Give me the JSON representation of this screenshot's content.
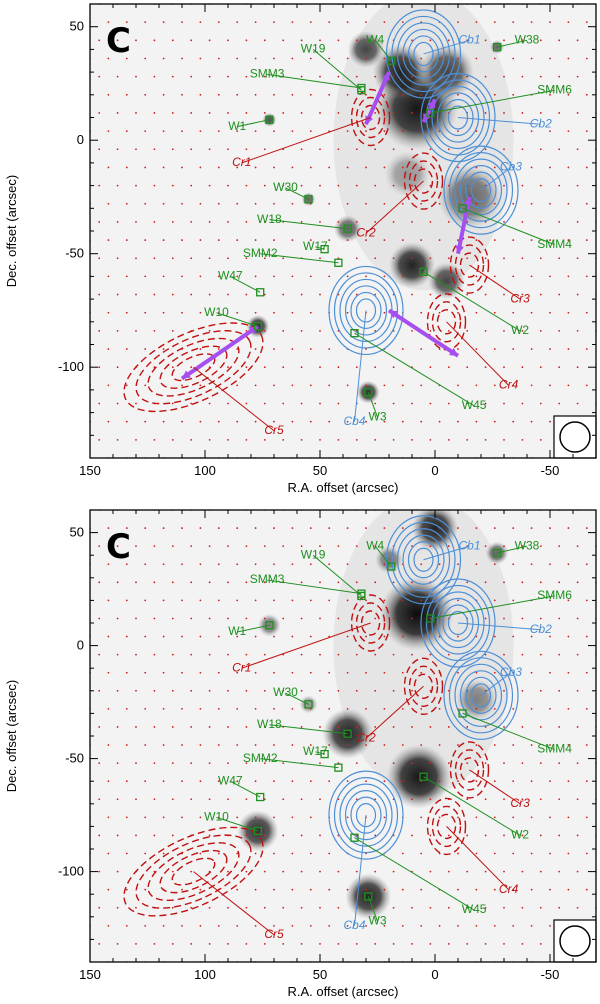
{
  "chart_data": [
    {
      "type": "scatter",
      "panel_label": "C",
      "xlabel": "R.A. offset (arcsec)",
      "ylabel": "Dec. offset (arcsec)",
      "xlim": [
        150,
        -70
      ],
      "ylim": [
        -140,
        60
      ],
      "x_reversed": true,
      "xticks": [
        150,
        100,
        50,
        0,
        -50
      ],
      "yticks": [
        50,
        0,
        -50,
        -100
      ],
      "background": "grayscale near-infrared image (high resolution)",
      "outflow_arrows": true,
      "colors": {
        "sources": "#1f8f1f",
        "blue_lobes": "#4d8fd6",
        "red_lobes": "#c01010",
        "arrows": "#a64ff0",
        "grid_dots": "#d02020"
      },
      "sources": [
        {
          "name": "W4",
          "x": 19,
          "y": 35,
          "lx": 26,
          "ly": 44
        },
        {
          "name": "W19",
          "x": 32,
          "y": 22,
          "lx": 53,
          "ly": 40
        },
        {
          "name": "W38",
          "x": -27,
          "y": 41,
          "lx": -40,
          "ly": 44
        },
        {
          "name": "SMM3",
          "x": 32,
          "y": 23,
          "lx": 73,
          "ly": 29
        },
        {
          "name": "SMM6",
          "x": 2,
          "y": 12,
          "lx": -52,
          "ly": 22
        },
        {
          "name": "W1",
          "x": 72,
          "y": 9,
          "lx": 86,
          "ly": 6
        },
        {
          "name": "W30",
          "x": 55,
          "y": -26,
          "lx": 65,
          "ly": -21
        },
        {
          "name": "W18",
          "x": 38,
          "y": -39,
          "lx": 72,
          "ly": -35
        },
        {
          "name": "SMM4",
          "x": -12,
          "y": -30,
          "lx": -52,
          "ly": -46
        },
        {
          "name": "SMM2",
          "x": 42,
          "y": -54,
          "lx": 76,
          "ly": -50
        },
        {
          "name": "W17",
          "x": 48,
          "y": -48,
          "lx": 52,
          "ly": -47
        },
        {
          "name": "W47",
          "x": 76,
          "y": -67,
          "lx": 89,
          "ly": -60
        },
        {
          "name": "W10",
          "x": 77,
          "y": -82,
          "lx": 95,
          "ly": -76
        },
        {
          "name": "W2",
          "x": 5,
          "y": -58,
          "lx": -37,
          "ly": -84
        },
        {
          "name": "W45",
          "x": 35,
          "y": -85,
          "lx": -17,
          "ly": -117
        },
        {
          "name": "W3",
          "x": 29,
          "y": -111,
          "lx": 25,
          "ly": -122
        }
      ],
      "blue_lobes": [
        {
          "name": "Cb1",
          "x": 5,
          "y": 38,
          "lx": -15,
          "ly": 44
        },
        {
          "name": "Cb2",
          "x": -10,
          "y": 10,
          "lx": -46,
          "ly": 7
        },
        {
          "name": "Cb3",
          "x": -20,
          "y": -22,
          "lx": -33,
          "ly": -12
        },
        {
          "name": "Cb4",
          "x": 30,
          "y": -75,
          "lx": 35,
          "ly": -124
        }
      ],
      "red_lobes": [
        {
          "name": "Cr1",
          "x": 28,
          "y": 10,
          "lx": 84,
          "ly": -10
        },
        {
          "name": "Cr2",
          "x": 5,
          "y": -18,
          "lx": 30,
          "ly": -41
        },
        {
          "name": "Cr3",
          "x": -15,
          "y": -55,
          "lx": -37,
          "ly": -70
        },
        {
          "name": "Cr4",
          "x": -5,
          "y": -80,
          "lx": -32,
          "ly": -108
        },
        {
          "name": "Cr5",
          "x": 105,
          "y": -100,
          "lx": 70,
          "ly": -128
        }
      ],
      "beam": "circle (bottom-right)"
    },
    {
      "type": "scatter",
      "panel_label": "C",
      "xlabel": "R.A. offset (arcsec)",
      "ylabel": "Dec. offset (arcsec)",
      "xlim": [
        150,
        -70
      ],
      "ylim": [
        -140,
        60
      ],
      "x_reversed": true,
      "xticks": [
        150,
        100,
        50,
        0,
        -50
      ],
      "yticks": [
        50,
        0,
        -50,
        -100
      ],
      "background": "grayscale mid-infrared image (lower resolution)",
      "outflow_arrows": false,
      "colors": {
        "sources": "#1f8f1f",
        "blue_lobes": "#4d8fd6",
        "red_lobes": "#c01010",
        "grid_dots": "#d02020"
      },
      "sources": [
        {
          "name": "W4",
          "x": 19,
          "y": 35,
          "lx": 26,
          "ly": 44
        },
        {
          "name": "W19",
          "x": 32,
          "y": 22,
          "lx": 53,
          "ly": 40
        },
        {
          "name": "W38",
          "x": -27,
          "y": 41,
          "lx": -40,
          "ly": 44
        },
        {
          "name": "SMM3",
          "x": 32,
          "y": 23,
          "lx": 73,
          "ly": 29
        },
        {
          "name": "SMM6",
          "x": 2,
          "y": 12,
          "lx": -52,
          "ly": 22
        },
        {
          "name": "W1",
          "x": 72,
          "y": 9,
          "lx": 86,
          "ly": 6
        },
        {
          "name": "W30",
          "x": 55,
          "y": -26,
          "lx": 65,
          "ly": -21
        },
        {
          "name": "W18",
          "x": 38,
          "y": -39,
          "lx": 72,
          "ly": -35
        },
        {
          "name": "SMM4",
          "x": -12,
          "y": -30,
          "lx": -52,
          "ly": -46
        },
        {
          "name": "SMM2",
          "x": 42,
          "y": -54,
          "lx": 76,
          "ly": -50
        },
        {
          "name": "W17",
          "x": 48,
          "y": -48,
          "lx": 52,
          "ly": -47
        },
        {
          "name": "W47",
          "x": 76,
          "y": -67,
          "lx": 89,
          "ly": -60
        },
        {
          "name": "W10",
          "x": 77,
          "y": -82,
          "lx": 95,
          "ly": -76
        },
        {
          "name": "W2",
          "x": 5,
          "y": -58,
          "lx": -37,
          "ly": -84
        },
        {
          "name": "W45",
          "x": 35,
          "y": -85,
          "lx": -17,
          "ly": -117
        },
        {
          "name": "W3",
          "x": 29,
          "y": -111,
          "lx": 25,
          "ly": -122
        }
      ],
      "blue_lobes": [
        {
          "name": "Cb1",
          "x": 5,
          "y": 38,
          "lx": -15,
          "ly": 44
        },
        {
          "name": "Cb2",
          "x": -10,
          "y": 10,
          "lx": -46,
          "ly": 7
        },
        {
          "name": "Cb3",
          "x": -20,
          "y": -22,
          "lx": -33,
          "ly": -12
        },
        {
          "name": "Cb4",
          "x": 30,
          "y": -75,
          "lx": 35,
          "ly": -124
        }
      ],
      "red_lobes": [
        {
          "name": "Cr1",
          "x": 28,
          "y": 10,
          "lx": 84,
          "ly": -10
        },
        {
          "name": "Cr2",
          "x": 5,
          "y": -18,
          "lx": 30,
          "ly": -41
        },
        {
          "name": "Cr3",
          "x": -15,
          "y": -55,
          "lx": -37,
          "ly": -70
        },
        {
          "name": "Cr4",
          "x": -5,
          "y": -80,
          "lx": -32,
          "ly": -108
        },
        {
          "name": "Cr5",
          "x": 105,
          "y": -100,
          "lx": 70,
          "ly": -128
        }
      ],
      "beam": "circle (bottom-right)"
    }
  ]
}
